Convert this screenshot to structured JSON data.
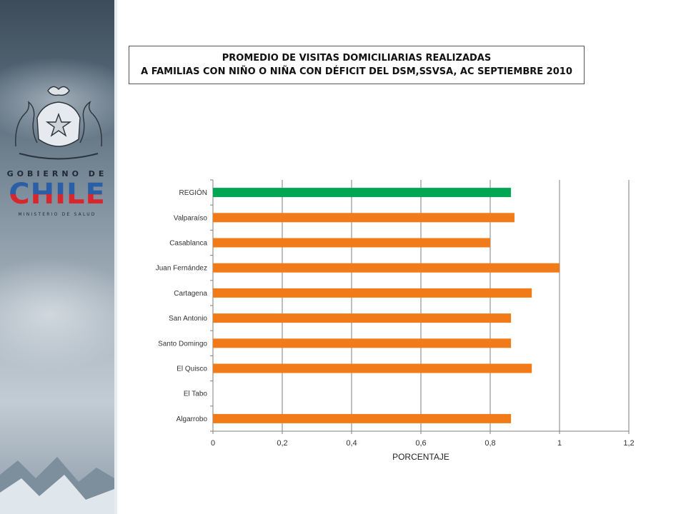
{
  "branding": {
    "gobierno": "GOBIERNO DE",
    "chile": "CHILE",
    "ministerio": "MINISTERIO DE SALUD"
  },
  "title": {
    "line1": "PROMEDIO DE VISITAS DOMICILIARIAS REALIZADAS",
    "line2": "A FAMILIAS CON NIÑO O NIÑA CON DÉFICIT DEL DSM,SSVSA,  AC SEPTIEMBRE 2010"
  },
  "chart_data": {
    "type": "bar",
    "orientation": "horizontal",
    "categories": [
      "REGIÓN",
      "Valparaíso",
      "Casablanca",
      "Juan Fernández",
      "Cartagena",
      "San Antonio",
      "Santo Domingo",
      "El Quisco",
      "El Tabo",
      "Algarrobo"
    ],
    "values": [
      0.86,
      0.87,
      0.8,
      1.0,
      0.92,
      0.86,
      0.86,
      0.92,
      0,
      0.86
    ],
    "bar_colors": [
      "#00a651",
      "#f07b18",
      "#f07b18",
      "#f07b18",
      "#f07b18",
      "#f07b18",
      "#f07b18",
      "#f07b18",
      "#f07b18",
      "#f07b18"
    ],
    "xlabel": "PORCENTAJE",
    "xlim": [
      0,
      1.2
    ],
    "xticks": [
      0,
      0.2,
      0.4,
      0.6,
      0.8,
      1,
      1.2
    ],
    "xtick_labels": [
      "0",
      "0,2",
      "0,4",
      "0,6",
      "0,8",
      "1",
      "1,2"
    ],
    "grid": "vertical"
  }
}
